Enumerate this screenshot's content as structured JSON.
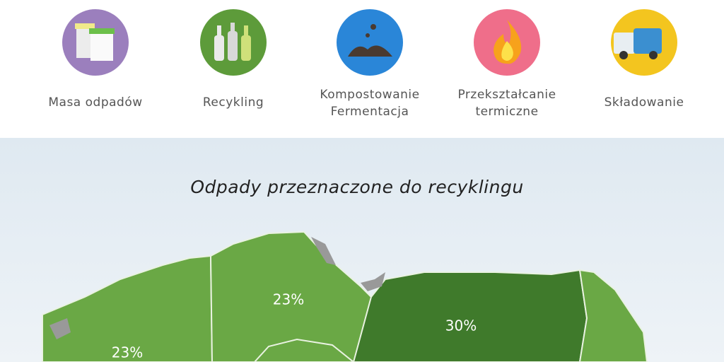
{
  "nav": {
    "items": [
      {
        "lines": [
          "Masa odpadów"
        ]
      },
      {
        "lines": [
          "Recykling"
        ]
      },
      {
        "lines": [
          "Kompostowanie",
          "Fermentacja"
        ]
      },
      {
        "lines": [
          "Przekształcanie",
          "termiczne"
        ]
      },
      {
        "lines": [
          "Składowanie"
        ]
      }
    ]
  },
  "map": {
    "title": "Odpady przeznaczone do recyklingu",
    "regions": [
      {
        "label": "23%"
      },
      {
        "label": "23%"
      },
      {
        "label": "30%"
      }
    ]
  }
}
